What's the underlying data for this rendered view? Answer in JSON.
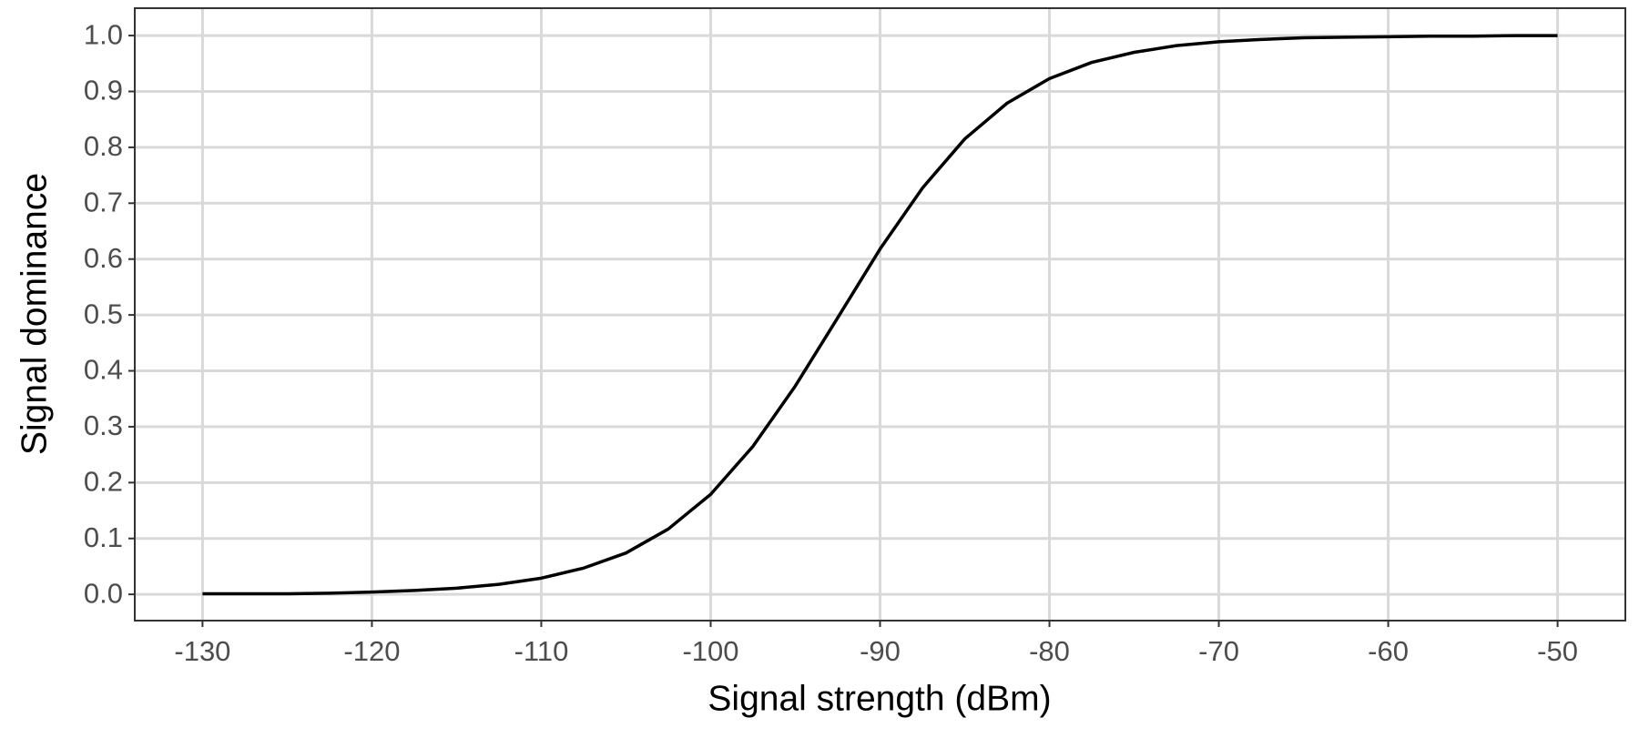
{
  "chart_data": {
    "type": "line",
    "x_label": "Signal strength (dBm)",
    "y_label": "Signal dominance",
    "x": [
      -130,
      -127.5,
      -125,
      -122.5,
      -120,
      -117.5,
      -115,
      -112.5,
      -110,
      -107.5,
      -105,
      -102.5,
      -100,
      -97.5,
      -95,
      -92.5,
      -90,
      -87.5,
      -85,
      -82.5,
      -80,
      -77.5,
      -75,
      -72.5,
      -70,
      -67.5,
      -65,
      -62.5,
      -60,
      -57.5,
      -55,
      -52.5,
      -50
    ],
    "series": [
      {
        "color": "#000000",
        "values": [
          0.001,
          0.001,
          0.001,
          0.002,
          0.004,
          0.007,
          0.011,
          0.018,
          0.029,
          0.047,
          0.074,
          0.117,
          0.179,
          0.265,
          0.373,
          0.495,
          0.618,
          0.727,
          0.815,
          0.879,
          0.923,
          0.952,
          0.97,
          0.982,
          0.989,
          0.993,
          0.996,
          0.997,
          0.998,
          0.999,
          0.999,
          1.0,
          1.0
        ]
      }
    ],
    "xlim": [
      -134,
      -46
    ],
    "ylim": [
      -0.047,
      1.049
    ],
    "xticks": [
      -130,
      -120,
      -110,
      -100,
      -90,
      -80,
      -70,
      -60,
      -50
    ],
    "yticks": [
      {
        "value": 0,
        "label": "0.0"
      },
      0.1,
      0.2,
      0.3,
      0.4,
      0.5,
      0.6,
      0.7,
      0.8,
      0.9,
      {
        "value": 1,
        "label": "1.0"
      }
    ],
    "grid": true
  }
}
